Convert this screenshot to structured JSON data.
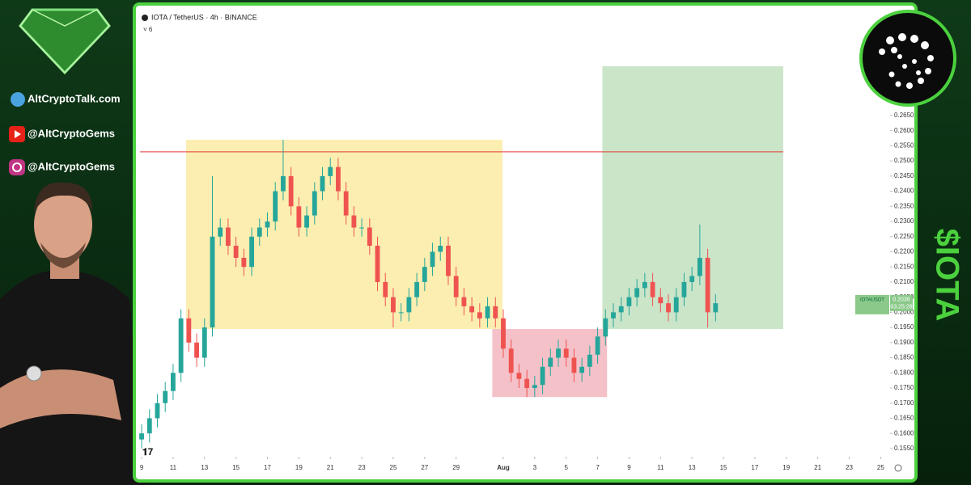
{
  "header": {
    "title": "IOTA / TetherUS · 4h · BINANCE",
    "indicator_toggle": "6"
  },
  "social": {
    "site": "AltCryptoTalk.com",
    "youtube": "@AltCryptoGems",
    "instagram": "@AltCryptoGems",
    "ticker": "$IOTA"
  },
  "chart_data": {
    "type": "candlestick",
    "title": "IOTA / TetherUS · 4h · BINANCE",
    "up_color": "#26a69a",
    "down_color": "#ef5350",
    "x": [
      9,
      9.5,
      10,
      10.5,
      11,
      11.5,
      12,
      12.5,
      13,
      13.5,
      14,
      14.5,
      15,
      15.5,
      16,
      16.5,
      17,
      17.5,
      18,
      18.5,
      19,
      19.5,
      20,
      20.5,
      21,
      21.5,
      22,
      22.5,
      23,
      23.5,
      24,
      24.5,
      25,
      25.5,
      26,
      26.5,
      27,
      27.5,
      28,
      28.5,
      29,
      29.5,
      30,
      30.5,
      31,
      31.5,
      32,
      32.5,
      33,
      33.5,
      34,
      34.5,
      35,
      35.5,
      36,
      36.5,
      37,
      37.5,
      38,
      38.5,
      39,
      39.5,
      40,
      40.5,
      41,
      41.5,
      42,
      42.5,
      43,
      43.5,
      44,
      44.5,
      45,
      45.5
    ],
    "ohlc": [
      [
        0.158,
        0.163,
        0.155,
        0.16
      ],
      [
        0.16,
        0.168,
        0.157,
        0.165
      ],
      [
        0.165,
        0.173,
        0.162,
        0.17
      ],
      [
        0.17,
        0.177,
        0.167,
        0.174
      ],
      [
        0.174,
        0.183,
        0.171,
        0.18
      ],
      [
        0.18,
        0.201,
        0.177,
        0.198
      ],
      [
        0.198,
        0.201,
        0.187,
        0.19
      ],
      [
        0.19,
        0.193,
        0.182,
        0.185
      ],
      [
        0.185,
        0.198,
        0.182,
        0.195
      ],
      [
        0.195,
        0.245,
        0.192,
        0.225
      ],
      [
        0.225,
        0.231,
        0.222,
        0.228
      ],
      [
        0.228,
        0.231,
        0.219,
        0.222
      ],
      [
        0.222,
        0.225,
        0.215,
        0.218
      ],
      [
        0.218,
        0.221,
        0.212,
        0.215
      ],
      [
        0.215,
        0.228,
        0.212,
        0.225
      ],
      [
        0.225,
        0.231,
        0.222,
        0.228
      ],
      [
        0.228,
        0.233,
        0.225,
        0.23
      ],
      [
        0.23,
        0.243,
        0.227,
        0.24
      ],
      [
        0.24,
        0.257,
        0.237,
        0.245
      ],
      [
        0.245,
        0.248,
        0.232,
        0.235
      ],
      [
        0.235,
        0.238,
        0.225,
        0.228
      ],
      [
        0.228,
        0.235,
        0.225,
        0.232
      ],
      [
        0.232,
        0.243,
        0.229,
        0.24
      ],
      [
        0.24,
        0.248,
        0.237,
        0.245
      ],
      [
        0.245,
        0.251,
        0.242,
        0.248
      ],
      [
        0.248,
        0.251,
        0.237,
        0.24
      ],
      [
        0.24,
        0.243,
        0.229,
        0.232
      ],
      [
        0.232,
        0.235,
        0.225,
        0.228
      ],
      [
        0.228,
        0.231,
        0.225,
        0.228
      ],
      [
        0.228,
        0.231,
        0.219,
        0.222
      ],
      [
        0.222,
        0.225,
        0.207,
        0.21
      ],
      [
        0.21,
        0.213,
        0.202,
        0.205
      ],
      [
        0.205,
        0.208,
        0.195,
        0.2
      ],
      [
        0.2,
        0.203,
        0.197,
        0.2
      ],
      [
        0.2,
        0.208,
        0.197,
        0.205
      ],
      [
        0.205,
        0.213,
        0.202,
        0.21
      ],
      [
        0.21,
        0.218,
        0.207,
        0.215
      ],
      [
        0.215,
        0.223,
        0.212,
        0.22
      ],
      [
        0.22,
        0.225,
        0.217,
        0.222
      ],
      [
        0.222,
        0.225,
        0.209,
        0.212
      ],
      [
        0.212,
        0.215,
        0.202,
        0.205
      ],
      [
        0.205,
        0.208,
        0.199,
        0.202
      ],
      [
        0.202,
        0.205,
        0.197,
        0.2
      ],
      [
        0.2,
        0.203,
        0.195,
        0.198
      ],
      [
        0.198,
        0.205,
        0.195,
        0.202
      ],
      [
        0.202,
        0.205,
        0.195,
        0.198
      ],
      [
        0.198,
        0.201,
        0.185,
        0.188
      ],
      [
        0.188,
        0.191,
        0.177,
        0.18
      ],
      [
        0.18,
        0.183,
        0.175,
        0.178
      ],
      [
        0.178,
        0.181,
        0.172,
        0.175
      ],
      [
        0.175,
        0.179,
        0.172,
        0.176
      ],
      [
        0.176,
        0.185,
        0.173,
        0.182
      ],
      [
        0.182,
        0.188,
        0.179,
        0.185
      ],
      [
        0.185,
        0.191,
        0.182,
        0.188
      ],
      [
        0.188,
        0.191,
        0.182,
        0.185
      ],
      [
        0.185,
        0.188,
        0.177,
        0.18
      ],
      [
        0.18,
        0.185,
        0.177,
        0.182
      ],
      [
        0.182,
        0.189,
        0.179,
        0.186
      ],
      [
        0.186,
        0.195,
        0.183,
        0.192
      ],
      [
        0.192,
        0.201,
        0.189,
        0.198
      ],
      [
        0.198,
        0.203,
        0.195,
        0.2
      ],
      [
        0.2,
        0.205,
        0.197,
        0.202
      ],
      [
        0.202,
        0.208,
        0.199,
        0.205
      ],
      [
        0.205,
        0.211,
        0.202,
        0.208
      ],
      [
        0.208,
        0.213,
        0.205,
        0.21
      ],
      [
        0.21,
        0.213,
        0.202,
        0.205
      ],
      [
        0.205,
        0.208,
        0.2,
        0.203
      ],
      [
        0.203,
        0.206,
        0.197,
        0.2
      ],
      [
        0.2,
        0.208,
        0.197,
        0.205
      ],
      [
        0.205,
        0.213,
        0.202,
        0.21
      ],
      [
        0.21,
        0.215,
        0.207,
        0.212
      ],
      [
        0.212,
        0.229,
        0.209,
        0.218
      ],
      [
        0.218,
        0.221,
        0.195,
        0.2
      ],
      [
        0.2,
        0.206,
        0.197,
        0.203
      ]
    ],
    "xlim": [
      8.74,
      56.6
    ],
    "xticks": [
      9,
      11,
      13,
      15,
      17,
      19,
      21,
      23,
      25,
      27,
      29,
      {
        "value": 32,
        "label": "Aug"
      },
      {
        "value": 34,
        "label": "3"
      },
      {
        "value": 36,
        "label": "5"
      },
      {
        "value": 38,
        "label": "7"
      },
      {
        "value": 40,
        "label": "9"
      },
      {
        "value": 42,
        "label": "11"
      },
      {
        "value": 44,
        "label": "13"
      },
      {
        "value": 46,
        "label": "15"
      },
      {
        "value": 48,
        "label": "17"
      },
      {
        "value": 50,
        "label": "19"
      },
      {
        "value": 52,
        "label": "21"
      },
      {
        "value": 54,
        "label": "23"
      },
      {
        "value": 56,
        "label": "25"
      }
    ],
    "ylim": [
      0.1523,
      0.3005
    ],
    "yticks": [
      {
        "value": 0.155,
        "label": "0.1550"
      },
      {
        "value": 0.16,
        "label": "0.1600"
      },
      {
        "value": 0.165,
        "label": "0.1650"
      },
      {
        "value": 0.17,
        "label": "0.1700"
      },
      {
        "value": 0.175,
        "label": "0.1750"
      },
      {
        "value": 0.18,
        "label": "0.1800"
      },
      {
        "value": 0.185,
        "label": "0.1850"
      },
      {
        "value": 0.19,
        "label": "0.1900"
      },
      {
        "value": 0.195,
        "label": "0.1950"
      },
      {
        "value": 0.2,
        "label": "0.2000"
      },
      {
        "value": 0.205,
        "label": "0.2050"
      },
      {
        "value": 0.21,
        "label": "0.2100"
      },
      {
        "value": 0.215,
        "label": "0.2150"
      },
      {
        "value": 0.22,
        "label": "0.2200"
      },
      {
        "value": 0.225,
        "label": "0.2250"
      },
      {
        "value": 0.23,
        "label": "0.2300"
      },
      {
        "value": 0.235,
        "label": "0.2350"
      },
      {
        "value": 0.24,
        "label": "0.2400"
      },
      {
        "value": 0.245,
        "label": "0.2450"
      },
      {
        "value": 0.25,
        "label": "0.2500"
      },
      {
        "value": 0.255,
        "label": "0.2550"
      },
      {
        "value": 0.26,
        "label": "0.2600"
      },
      {
        "value": 0.265,
        "label": "0.2650"
      }
    ],
    "zones": [
      {
        "x0": 11.83,
        "x1": 31.95,
        "y0": 0.1945,
        "y1": 0.257,
        "color": "#fbeeb0"
      },
      {
        "x0": 31.3,
        "x1": 38.6,
        "y0": 0.172,
        "y1": 0.1945,
        "color": "#f5c1c8"
      },
      {
        "x0": 38.3,
        "x1": 49.8,
        "y0": 0.1945,
        "y1": 0.2813,
        "color": "#cbe5c9"
      }
    ],
    "resistance": {
      "value": 0.253,
      "x0": 8.9,
      "x1": 49.8,
      "color": "#e53935"
    },
    "last_price": {
      "symbol": "IOTAUSDT",
      "price": 0.2036,
      "countdown": "03:25:28",
      "color": "#8bc98a"
    }
  }
}
